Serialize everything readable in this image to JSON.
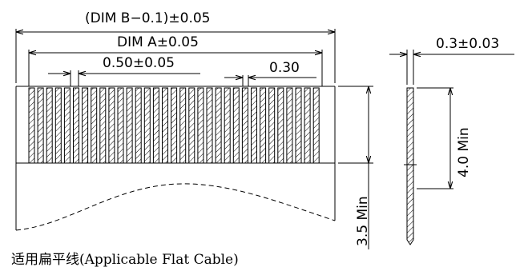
{
  "dimensions": {
    "dim_b": "(DIM  B−0.1)±0.05",
    "dim_a": "DIM  A±0.05",
    "pitch": "0.50±0.05",
    "conductor_width": "0.30",
    "thickness": "0.3±0.03",
    "stiffener_length": "4.0  Min",
    "strip_length": "3.5  Min"
  },
  "caption": "适用扁平线(Applicable Flat Cable)"
}
